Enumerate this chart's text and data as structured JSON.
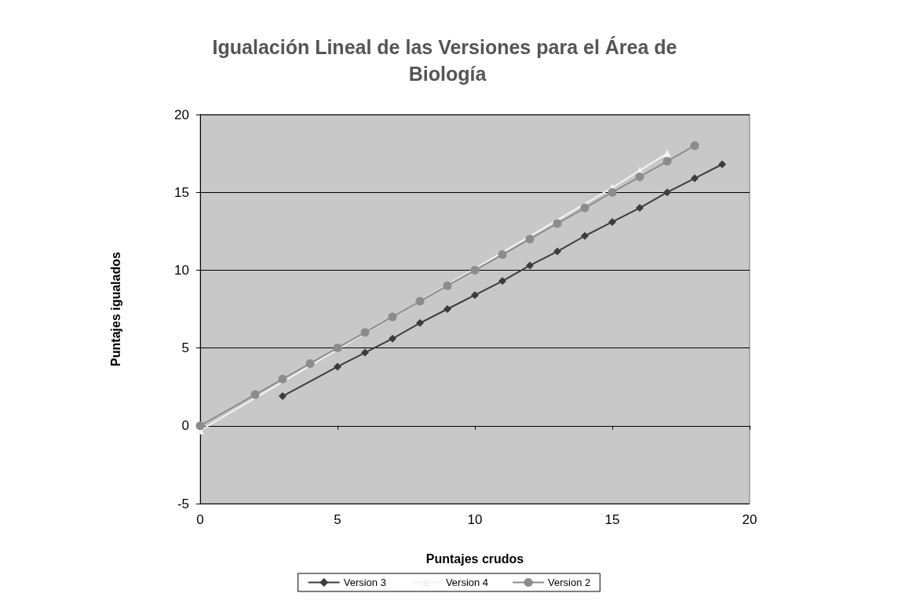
{
  "chart_data": {
    "type": "line",
    "title": "Igualación Lineal de las Versiones para el Área de Biología",
    "xlabel": "Puntajes crudos",
    "ylabel": "Puntajes igualados",
    "series": [
      {
        "name": "Version 3",
        "color": "#3c3c3c",
        "marker": "diamond",
        "x": [
          3,
          5,
          6,
          7,
          8,
          9,
          10,
          11,
          12,
          13,
          14,
          15,
          16,
          17,
          18,
          19
        ],
        "values": [
          1.9,
          3.8,
          4.7,
          5.6,
          6.6,
          7.5,
          8.4,
          9.3,
          10.3,
          11.2,
          12.2,
          13.1,
          14.0,
          15.0,
          15.9,
          16.8
        ]
      },
      {
        "name": "Version 4",
        "color": "#f4f4f4",
        "marker": "triangle",
        "x": [
          0,
          2,
          3,
          4,
          5,
          6,
          7,
          8,
          9,
          10,
          11,
          12,
          13,
          14,
          15,
          16,
          17
        ],
        "values": [
          -0.3,
          null,
          null,
          null,
          null,
          null,
          null,
          null,
          null,
          null,
          null,
          null,
          null,
          null,
          15.3,
          16.4,
          17.5
        ]
      },
      {
        "name": "Version 2",
        "color": "#8c8c8c",
        "marker": "circle",
        "x": [
          0,
          2,
          3,
          4,
          5,
          6,
          7,
          8,
          9,
          10,
          11,
          12,
          13,
          14,
          15,
          16,
          17,
          18
        ],
        "values": [
          0,
          2,
          3,
          4,
          5,
          6,
          7,
          8,
          9,
          10,
          11,
          12,
          13,
          14,
          15,
          16,
          17,
          18
        ]
      }
    ],
    "xlim": [
      0,
      20
    ],
    "xticks": [
      0,
      5,
      10,
      15,
      20
    ],
    "ylim": [
      -5,
      20
    ],
    "yticks": [
      -5,
      0,
      5,
      10,
      15,
      20
    ],
    "grid": "y",
    "legend": "bottom"
  }
}
